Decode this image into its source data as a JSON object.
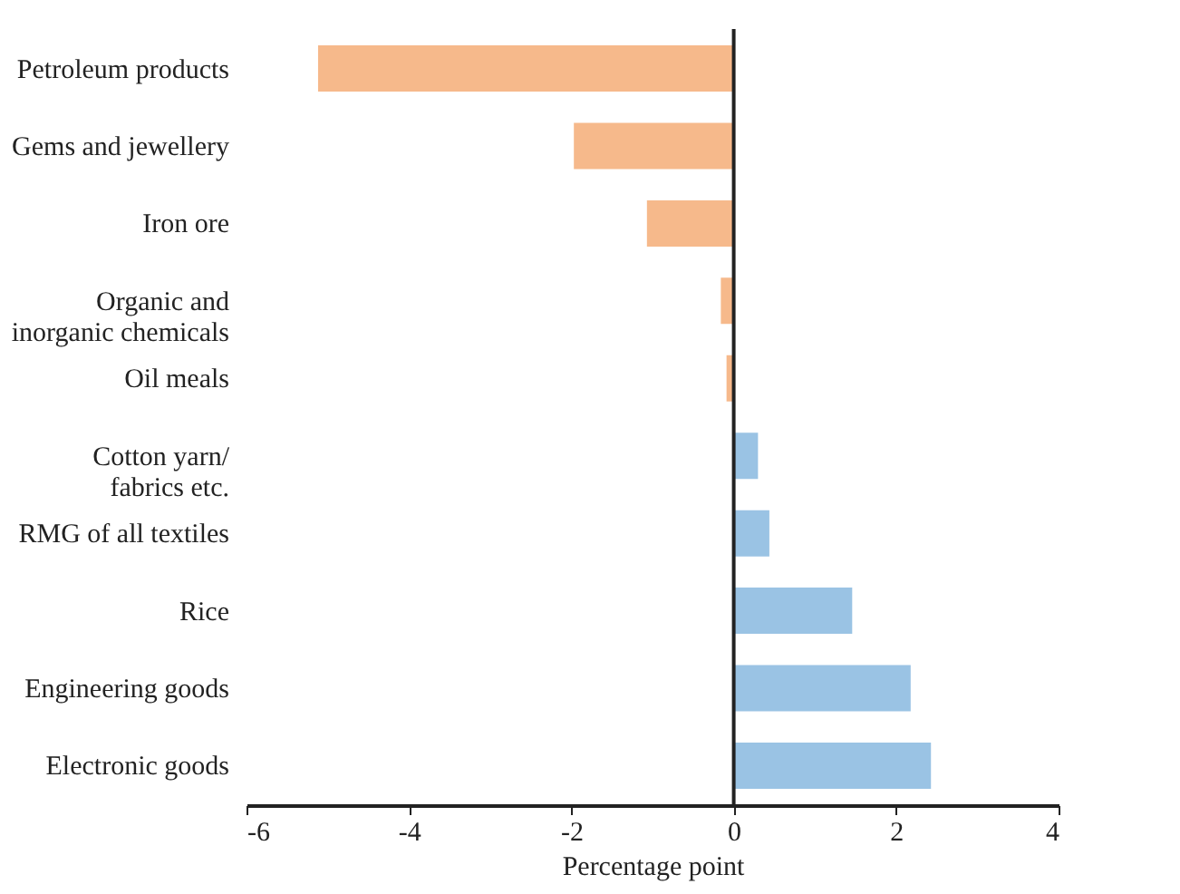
{
  "chart_data": {
    "type": "bar",
    "orientation": "horizontal",
    "xlabel": "Percentage point",
    "categories": [
      "Petroleum products",
      "Gems and jewellery",
      "Iron ore",
      "Organic and\ninorganic chemicals",
      "Oil meals",
      "Cotton yarn/\nfabrics etc.",
      "RMG of all textiles",
      "Rice",
      "Engineering goods",
      "Electronic goods"
    ],
    "values": [
      -5.13,
      -1.98,
      -1.08,
      -0.17,
      -0.1,
      0.31,
      0.45,
      1.47,
      2.19,
      2.44
    ],
    "colors": [
      "#f6b98b",
      "#f6b98b",
      "#f6b98b",
      "#f6b98b",
      "#f6b98b",
      "#9ac3e4",
      "#9ac3e4",
      "#9ac3e4",
      "#9ac3e4",
      "#9ac3e4"
    ],
    "xlim": [
      -6,
      4
    ],
    "xticks": [
      -6,
      -4,
      -2,
      0,
      2,
      4
    ],
    "ref_lines": [
      {
        "axis": "x",
        "value": 0
      }
    ],
    "grid": false
  }
}
